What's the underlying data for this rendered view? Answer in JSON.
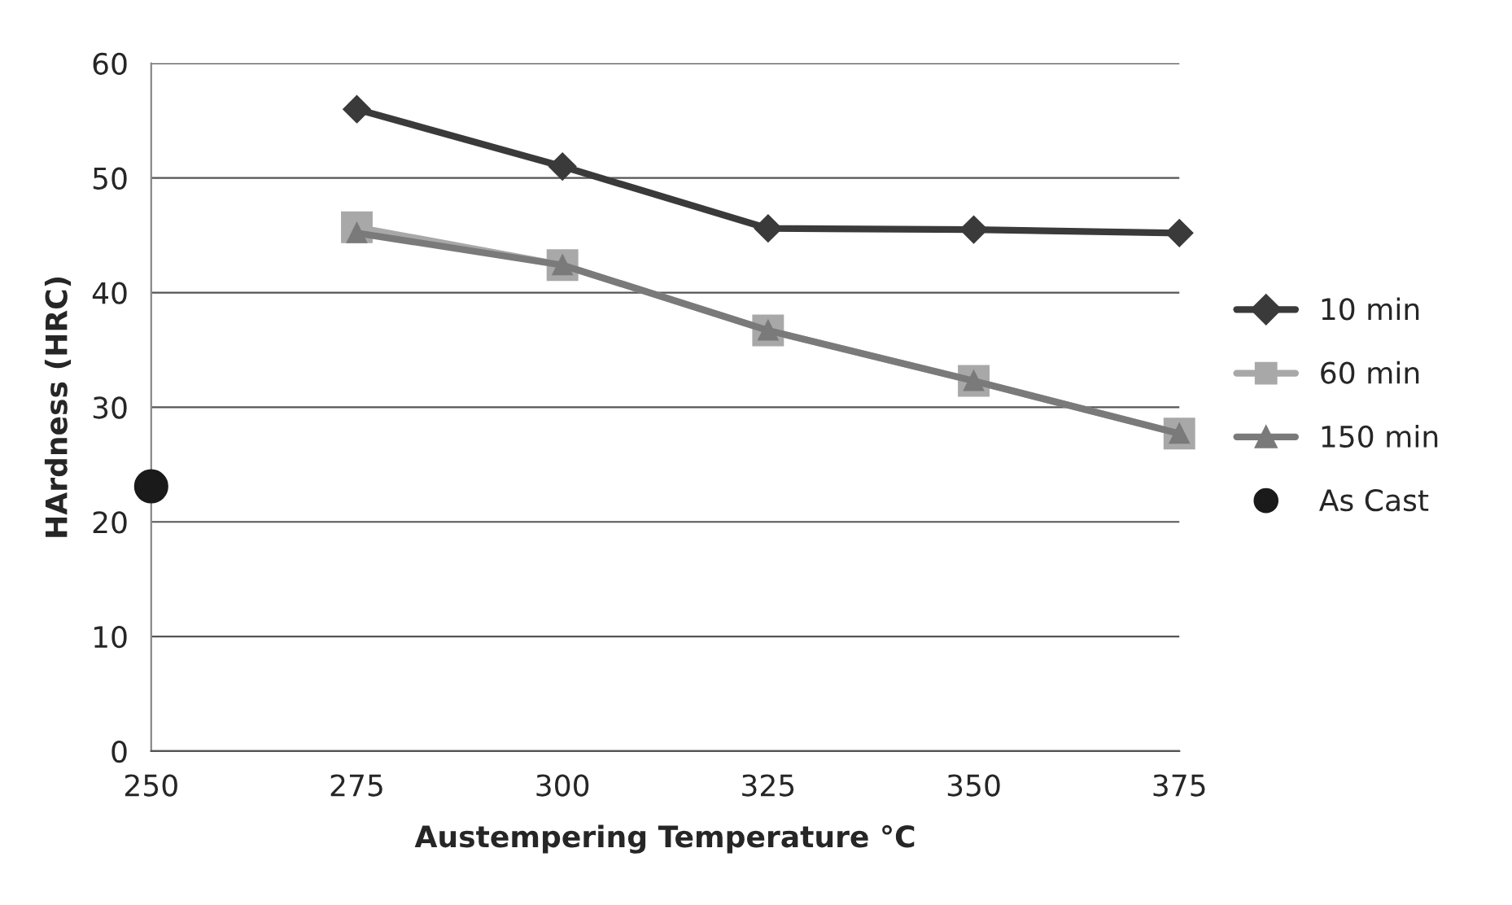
{
  "chart_data": {
    "type": "line",
    "xlabel": "Austempering Temperature °C",
    "ylabel": "HArdness (HRC)",
    "x": [
      275,
      300,
      325,
      350,
      375
    ],
    "series": [
      {
        "name": "10 min",
        "color": "#3a3a3a",
        "marker": "diamond",
        "values": [
          56.0,
          51.0,
          45.6,
          45.5,
          45.2
        ]
      },
      {
        "name": "60 min",
        "color": "#a8a8a8",
        "marker": "square",
        "values": [
          45.7,
          42.4,
          36.7,
          32.3,
          27.7
        ]
      },
      {
        "name": "150 min",
        "color": "#7a7a7a",
        "marker": "triangle",
        "values": [
          45.2,
          42.4,
          36.7,
          32.3,
          27.7
        ]
      },
      {
        "name": "As Cast",
        "type": "scatter",
        "color": "#1a1a1a",
        "marker": "circle",
        "x": [
          250
        ],
        "values": [
          23.1
        ]
      }
    ],
    "xlim": [
      250,
      375
    ],
    "xticks": [
      250,
      275,
      300,
      325,
      350,
      375
    ],
    "ylim": [
      0,
      60
    ],
    "yticks": [
      0,
      10,
      20,
      30,
      40,
      50,
      60
    ],
    "grid": "y",
    "legend": "right"
  }
}
